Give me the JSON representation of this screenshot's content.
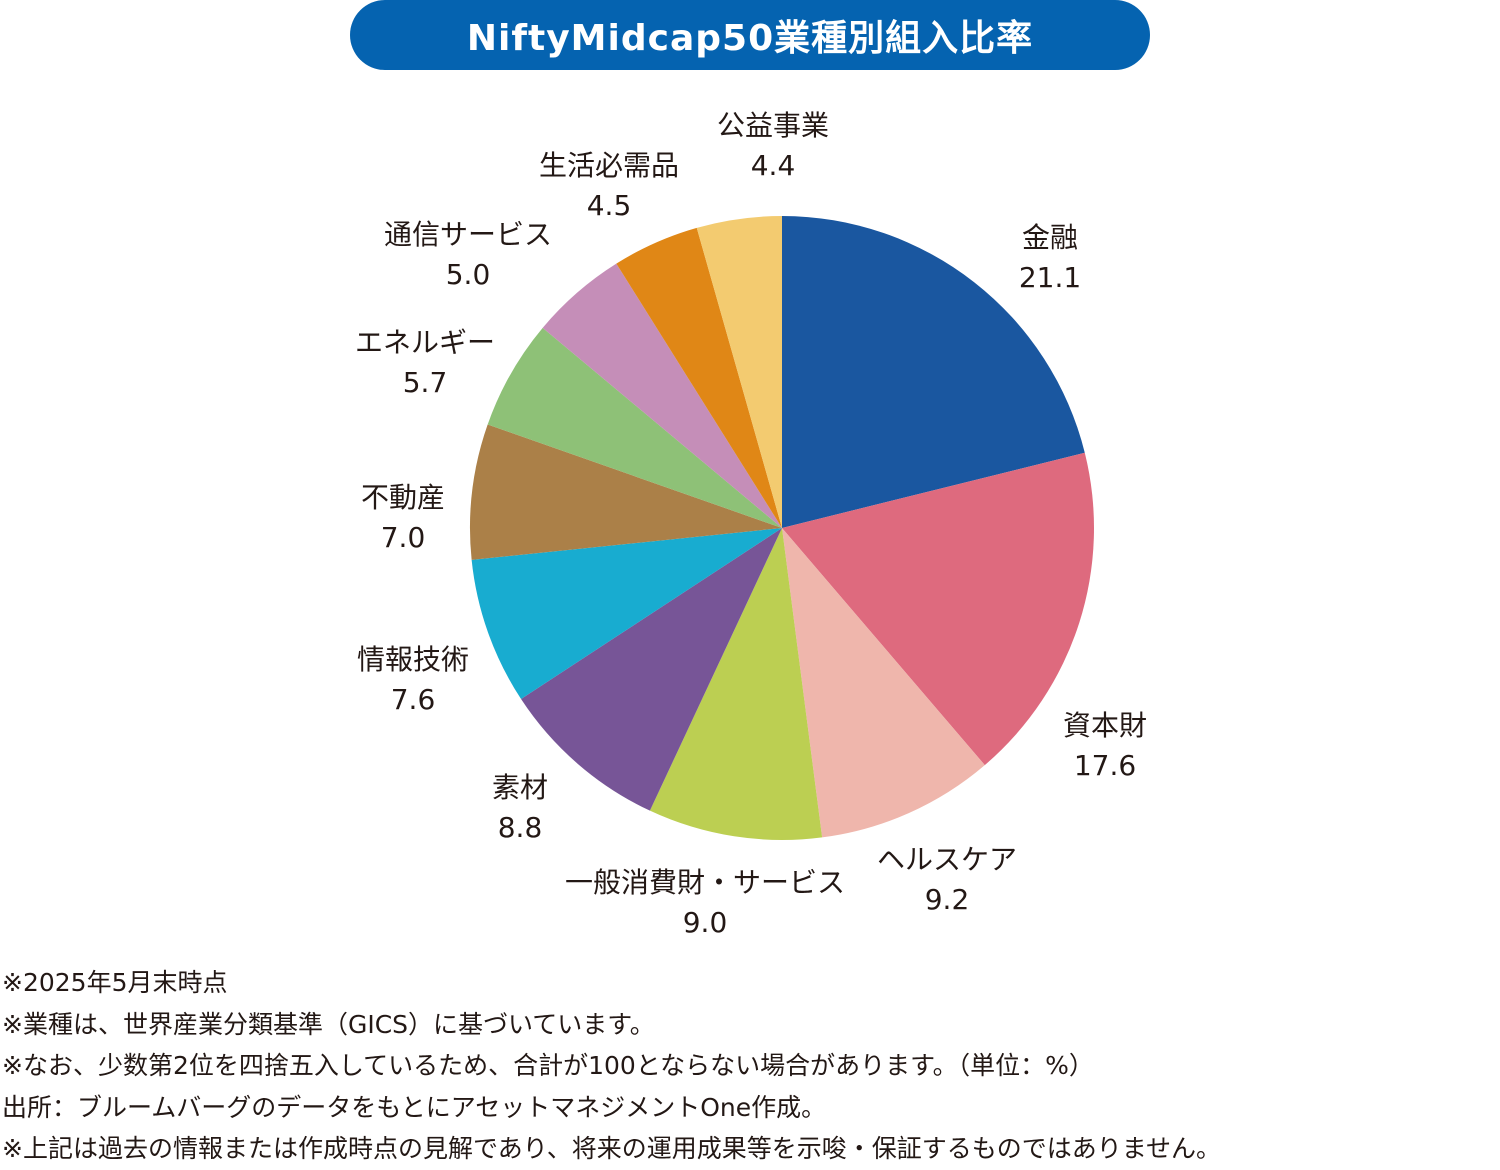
{
  "chart_data": {
    "type": "pie",
    "title": "NiftyMidcap50業種別組入比率",
    "unit": "%",
    "start": "top, clockwise",
    "slices": [
      {
        "label": "金融",
        "value": 21.1,
        "color": "#1a57a0"
      },
      {
        "label": "資本財",
        "value": 17.6,
        "color": "#de6a7e"
      },
      {
        "label": "ヘルスケア",
        "value": 9.2,
        "color": "#efb6ac"
      },
      {
        "label": "一般消費財・サービス",
        "value": 9.0,
        "color": "#bccf52"
      },
      {
        "label": "素材",
        "value": 8.8,
        "color": "#775597"
      },
      {
        "label": "情報技術",
        "value": 7.6,
        "color": "#18acd0"
      },
      {
        "label": "不動産",
        "value": 7.0,
        "color": "#ab8048"
      },
      {
        "label": "エネルギー",
        "value": 5.7,
        "color": "#8ec177"
      },
      {
        "label": "通信サービス",
        "value": 5.0,
        "color": "#c58eb8"
      },
      {
        "label": "生活必需品",
        "value": 4.5,
        "color": "#e08716"
      },
      {
        "label": "公益事業",
        "value": 4.4,
        "color": "#f3cb70"
      }
    ]
  },
  "notes": [
    "※2025年5月末時点",
    "※業種は、世界産業分類基準（GICS）に基づいています。",
    "※なお、少数第2位を四捨五入しているため、合計が100とならない場合があります。（単位：%）",
    "出所：ブルームバーグのデータをもとにアセットマネジメントOne作成。",
    "※上記は過去の情報または作成時点の見解であり、将来の運用成果等を示唆・保証するものではありません。"
  ],
  "colors": {
    "title_bg": "#0563b0"
  }
}
